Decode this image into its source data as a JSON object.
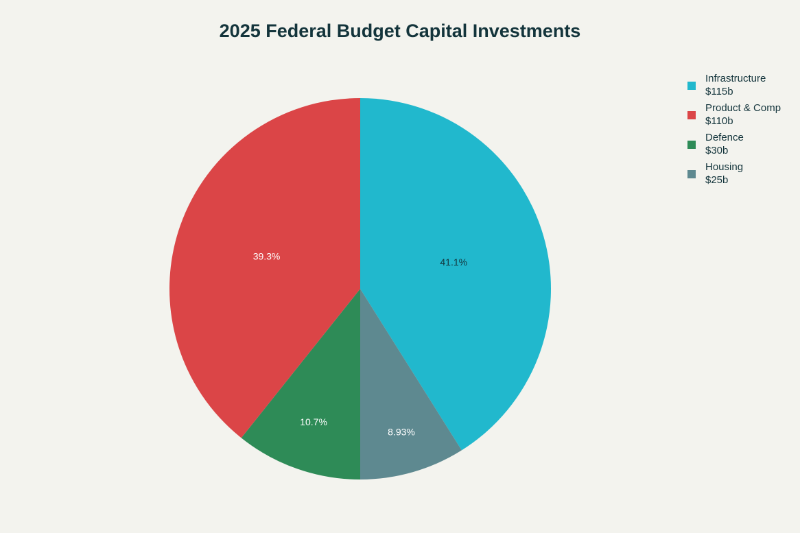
{
  "chart_data": {
    "type": "pie",
    "title": "2025 Federal Budget Capital Investments",
    "direction": "clockwise",
    "start_angle": "12 o'clock",
    "legend_position": "top-right",
    "slices": [
      {
        "label": "Infrastructure",
        "legend_value": "$115b",
        "value": 115,
        "percent_label": "41.1%",
        "color": "#21b8cd",
        "text_color": "#13343b"
      },
      {
        "label": "Housing",
        "legend_value": "$25b",
        "value": 25,
        "percent_label": "8.93%",
        "color": "#5e8990",
        "text_color": "#ffffff"
      },
      {
        "label": "Defence",
        "legend_value": "$30b",
        "value": 30,
        "percent_label": "10.7%",
        "color": "#2e8b57",
        "text_color": "#ffffff"
      },
      {
        "label": "Product & Comp",
        "legend_value": "$110b",
        "value": 110,
        "percent_label": "39.3%",
        "color": "#db4547",
        "text_color": "#ffffff"
      }
    ],
    "legend_order": [
      "Infrastructure",
      "Product & Comp",
      "Defence",
      "Housing"
    ]
  }
}
